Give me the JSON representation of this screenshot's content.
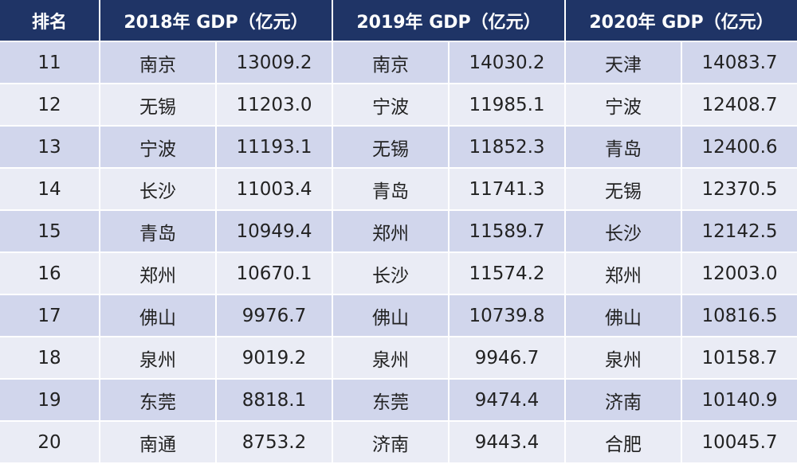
{
  "header": {
    "rank": "排名",
    "y2018": "2018年 GDP（亿元）",
    "y2019": "2019年 GDP（亿元）",
    "y2020": "2020年 GDP（亿元）"
  },
  "rows": [
    {
      "rank": "11",
      "c2018": "南京",
      "v2018": "13009.2",
      "c2019": "南京",
      "v2019": "14030.2",
      "c2020": "天津",
      "v2020": "14083.7"
    },
    {
      "rank": "12",
      "c2018": "无锡",
      "v2018": "11203.0",
      "c2019": "宁波",
      "v2019": "11985.1",
      "c2020": "宁波",
      "v2020": "12408.7"
    },
    {
      "rank": "13",
      "c2018": "宁波",
      "v2018": "11193.1",
      "c2019": "无锡",
      "v2019": "11852.3",
      "c2020": "青岛",
      "v2020": "12400.6"
    },
    {
      "rank": "14",
      "c2018": "长沙",
      "v2018": "11003.4",
      "c2019": "青岛",
      "v2019": "11741.3",
      "c2020": "无锡",
      "v2020": "12370.5"
    },
    {
      "rank": "15",
      "c2018": "青岛",
      "v2018": "10949.4",
      "c2019": "郑州",
      "v2019": "11589.7",
      "c2020": "长沙",
      "v2020": "12142.5"
    },
    {
      "rank": "16",
      "c2018": "郑州",
      "v2018": "10670.1",
      "c2019": "长沙",
      "v2019": "11574.2",
      "c2020": "郑州",
      "v2020": "12003.0"
    },
    {
      "rank": "17",
      "c2018": "佛山",
      "v2018": "9976.7",
      "c2019": "佛山",
      "v2019": "10739.8",
      "c2020": "佛山",
      "v2020": "10816.5"
    },
    {
      "rank": "18",
      "c2018": "泉州",
      "v2018": "9019.2",
      "c2019": "泉州",
      "v2019": "9946.7",
      "c2020": "泉州",
      "v2020": "10158.7"
    },
    {
      "rank": "19",
      "c2018": "东莞",
      "v2018": "8818.1",
      "c2019": "东莞",
      "v2019": "9474.4",
      "c2020": "济南",
      "v2020": "10140.9"
    },
    {
      "rank": "20",
      "c2018": "南通",
      "v2018": "8753.2",
      "c2019": "济南",
      "v2019": "9443.4",
      "c2020": "合肥",
      "v2020": "10045.7"
    }
  ],
  "colors": {
    "header_bg": "#1f3466",
    "row_odd": "#d1d6ec",
    "row_even": "#eaecf5"
  }
}
